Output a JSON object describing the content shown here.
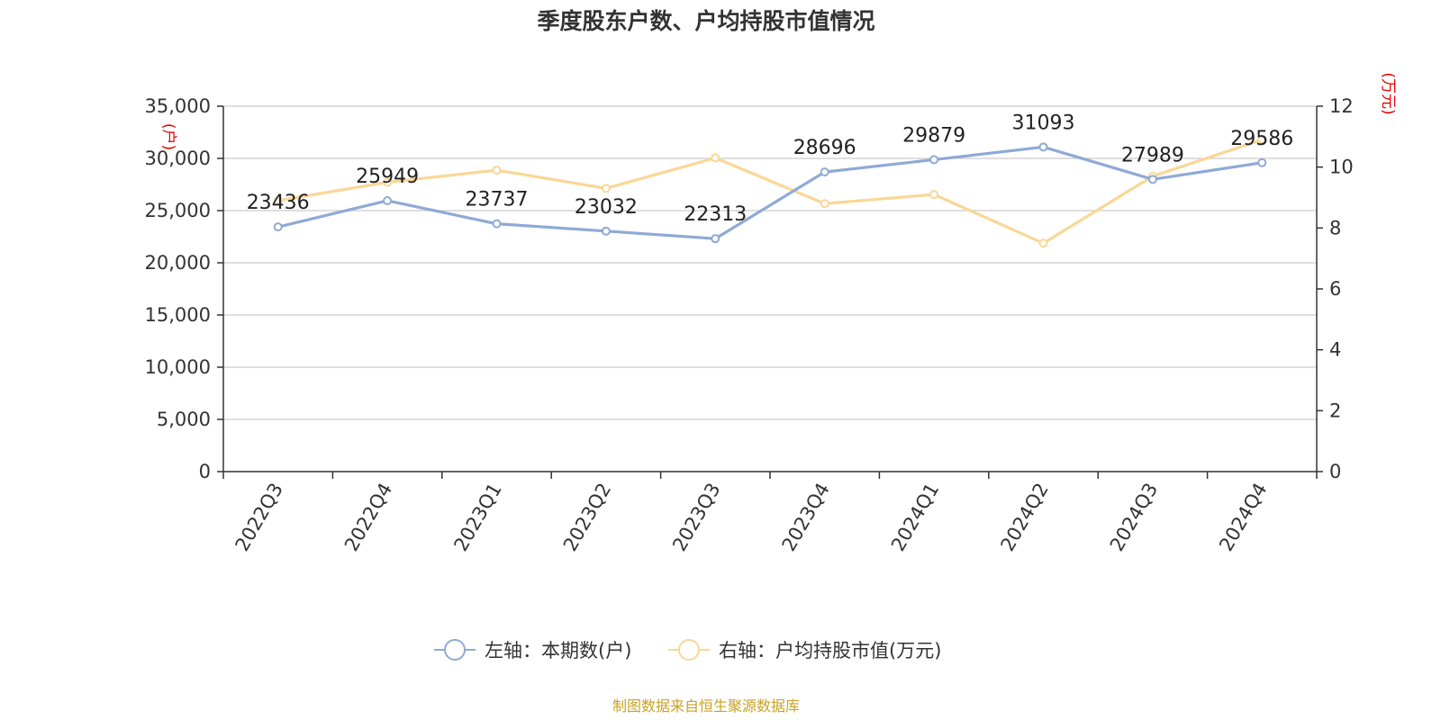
{
  "chart_data": {
    "type": "line",
    "title": "季度股东户数、户均持股市值情况",
    "categories": [
      "2022Q3",
      "2022Q4",
      "2023Q1",
      "2023Q2",
      "2023Q3",
      "2023Q4",
      "2024Q1",
      "2024Q2",
      "2024Q3",
      "2024Q4"
    ],
    "left_axis": {
      "unit": "(户)",
      "min": 0,
      "max": 35000,
      "ticks": [
        "0",
        "5,000",
        "10,000",
        "15,000",
        "20,000",
        "25,000",
        "30,000",
        "35,000"
      ]
    },
    "right_axis": {
      "unit": "(万元)",
      "min": 0,
      "max": 12,
      "ticks": [
        "0",
        "2",
        "4",
        "6",
        "8",
        "10",
        "12"
      ]
    },
    "series": [
      {
        "name": "左轴：本期数(户)",
        "axis": "left",
        "color": "#8eaad6",
        "values": [
          23436,
          25949,
          23737,
          23032,
          22313,
          28696,
          29879,
          31093,
          27989,
          29586
        ],
        "labels": [
          "23436",
          "25949",
          "23737",
          "23032",
          "22313",
          "28696",
          "29879",
          "31093",
          "27989",
          "29586"
        ]
      },
      {
        "name": "右轴：户均持股市值(万元)",
        "axis": "right",
        "color": "#fad797",
        "values": [
          8.9,
          9.5,
          9.9,
          9.3,
          10.3,
          8.8,
          9.1,
          7.5,
          9.7,
          10.9
        ]
      }
    ],
    "grid": true,
    "legend_position": "bottom",
    "source": "制图数据来自恒生聚源数据库"
  }
}
